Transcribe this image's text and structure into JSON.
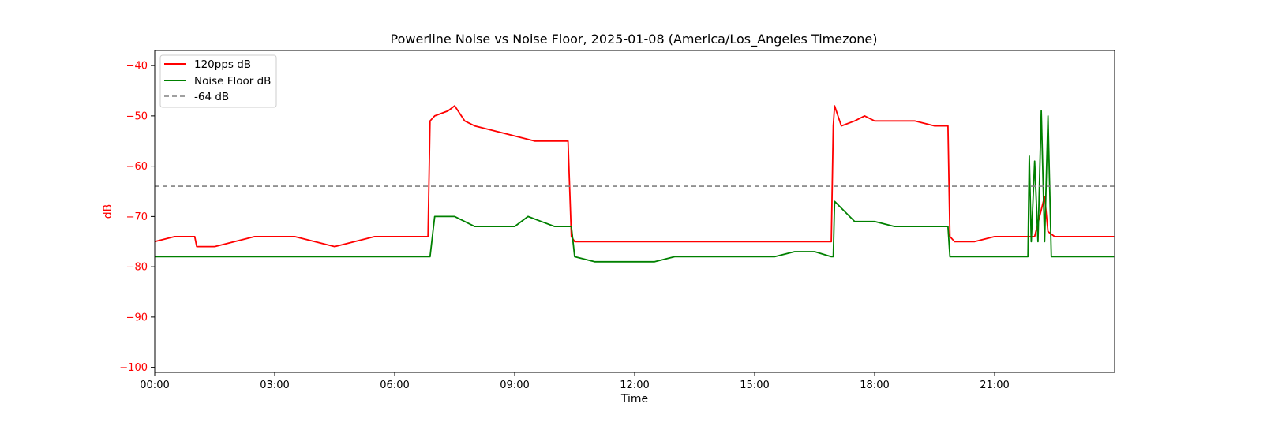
{
  "chart_data": {
    "type": "line",
    "title": "Powerline Noise vs Noise Floor, 2025-01-08 (America/Los_Angeles Timezone)",
    "xlabel": "Time",
    "ylabel": "dB",
    "xlim": [
      "00:00",
      "24:00"
    ],
    "ylim": [
      -101,
      -37
    ],
    "x_ticks": [
      "00:00",
      "03:00",
      "06:00",
      "09:00",
      "12:00",
      "15:00",
      "18:00",
      "21:00"
    ],
    "y_ticks": [
      -40,
      -50,
      -60,
      -70,
      -80,
      -90,
      -100
    ],
    "y_tick_labels": [
      "−40",
      "−50",
      "−60",
      "−70",
      "−80",
      "−90",
      "−100"
    ],
    "y_axis_color": "#ff0000",
    "grid": false,
    "legend": {
      "position": "top-left"
    },
    "series": [
      {
        "name": "120pps dB",
        "color": "#ff0000",
        "style": "solid",
        "x": [
          "00:00",
          "00:30",
          "01:00",
          "01:03",
          "01:30",
          "02:00",
          "02:30",
          "03:00",
          "03:30",
          "04:00",
          "04:30",
          "05:00",
          "05:30",
          "06:00",
          "06:30",
          "06:50",
          "06:53",
          "07:00",
          "07:20",
          "07:30",
          "07:45",
          "08:00",
          "08:30",
          "09:00",
          "09:30",
          "10:00",
          "10:20",
          "10:25",
          "10:30",
          "11:00",
          "11:30",
          "12:00",
          "12:30",
          "13:00",
          "13:30",
          "14:00",
          "14:30",
          "15:00",
          "15:30",
          "16:00",
          "16:30",
          "16:55",
          "16:58",
          "17:00",
          "17:10",
          "17:30",
          "17:45",
          "18:00",
          "18:30",
          "19:00",
          "19:30",
          "19:50",
          "19:53",
          "20:00",
          "20:30",
          "21:00",
          "21:30",
          "22:00",
          "22:15",
          "22:20",
          "22:30",
          "23:00",
          "23:59"
        ],
        "y": [
          -75,
          -74,
          -74,
          -76,
          -76,
          -75,
          -74,
          -74,
          -74,
          -75,
          -76,
          -75,
          -74,
          -74,
          -74,
          -74,
          -51,
          -50,
          -49,
          -48,
          -51,
          -52,
          -53,
          -54,
          -55,
          -55,
          -55,
          -74,
          -75,
          -75,
          -75,
          -75,
          -75,
          -75,
          -75,
          -75,
          -75,
          -75,
          -75,
          -75,
          -75,
          -75,
          -52,
          -48,
          -52,
          -51,
          -50,
          -51,
          -51,
          -51,
          -52,
          -52,
          -74,
          -75,
          -75,
          -74,
          -74,
          -74,
          -66,
          -73,
          -74,
          -74,
          -74
        ]
      },
      {
        "name": "Noise Floor dB",
        "color": "#008000",
        "style": "solid",
        "x": [
          "00:00",
          "01:00",
          "02:00",
          "03:00",
          "04:00",
          "04:30",
          "05:00",
          "06:00",
          "06:50",
          "06:53",
          "07:00",
          "07:30",
          "08:00",
          "08:30",
          "09:00",
          "09:20",
          "09:40",
          "10:00",
          "10:20",
          "10:25",
          "10:30",
          "11:00",
          "11:30",
          "12:00",
          "12:30",
          "13:00",
          "14:00",
          "14:30",
          "15:00",
          "15:30",
          "16:00",
          "16:30",
          "16:55",
          "16:58",
          "17:00",
          "17:30",
          "18:00",
          "18:30",
          "19:00",
          "19:30",
          "19:50",
          "19:53",
          "20:00",
          "21:00",
          "21:50",
          "21:52",
          "21:55",
          "22:00",
          "22:05",
          "22:10",
          "22:15",
          "22:20",
          "22:25",
          "23:00",
          "23:59"
        ],
        "y": [
          -78,
          -78,
          -78,
          -78,
          -78,
          -78,
          -78,
          -78,
          -78,
          -78,
          -70,
          -70,
          -72,
          -72,
          -72,
          -70,
          -71,
          -72,
          -72,
          -72,
          -78,
          -79,
          -79,
          -79,
          -79,
          -78,
          -78,
          -78,
          -78,
          -78,
          -77,
          -77,
          -78,
          -78,
          -67,
          -71,
          -71,
          -72,
          -72,
          -72,
          -72,
          -78,
          -78,
          -78,
          -78,
          -58,
          -75,
          -59,
          -75,
          -49,
          -75,
          -50,
          -78,
          -78,
          -78
        ]
      },
      {
        "name": "-64 dB",
        "color": "#808080",
        "style": "dashed",
        "x": [
          "00:00",
          "23:59"
        ],
        "y": [
          -64,
          -64
        ]
      }
    ]
  }
}
